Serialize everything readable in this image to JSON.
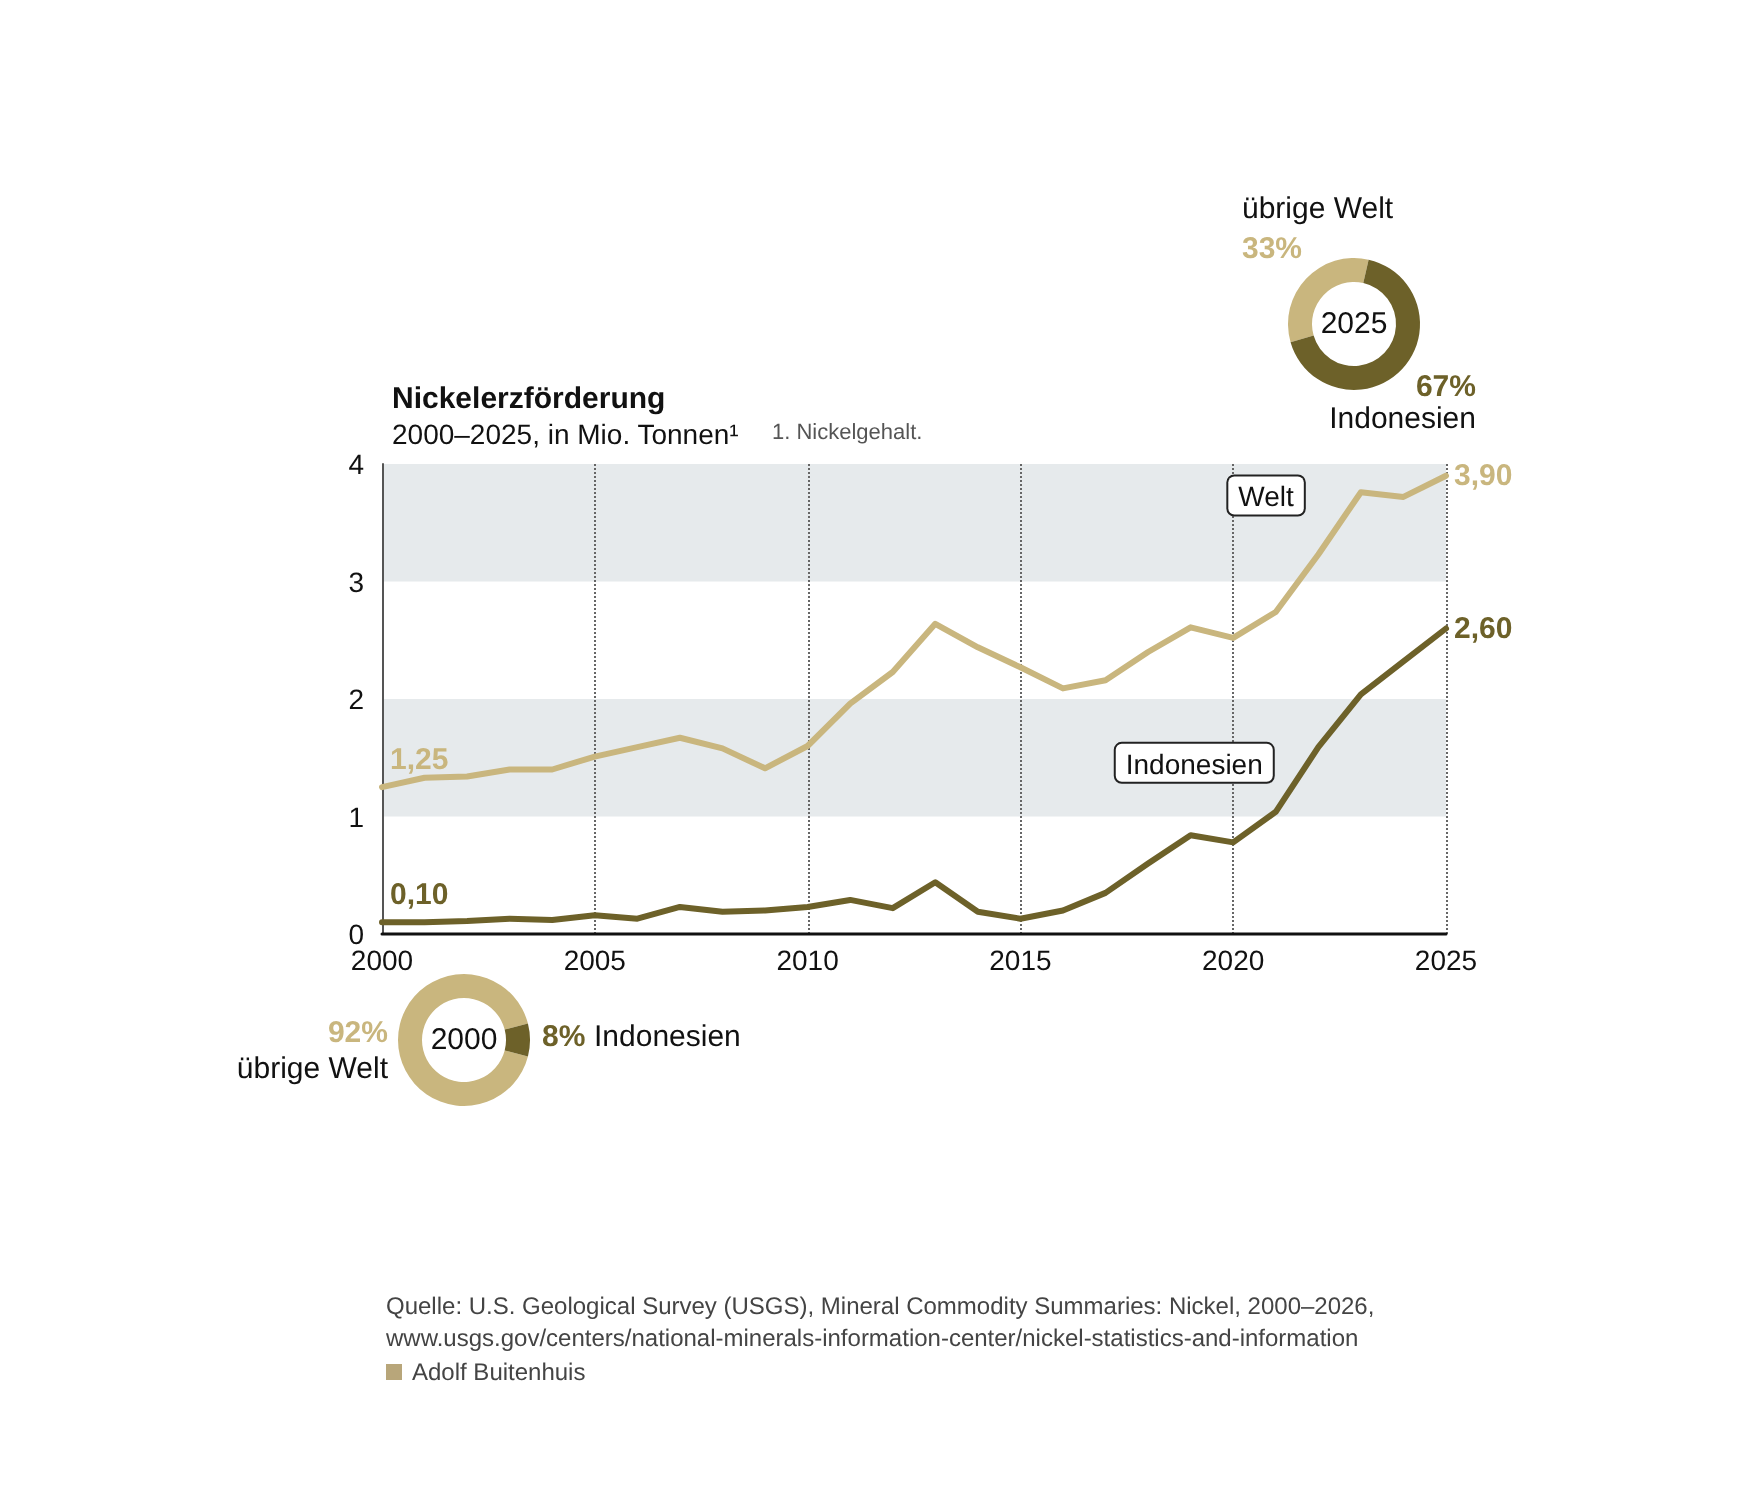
{
  "chart_data": [
    {
      "type": "donut",
      "title": "2025",
      "categories": [
        "übrige Welt",
        "Indonesien"
      ],
      "values": [
        33,
        67
      ],
      "colors": [
        "#c9b67e",
        "#6d6129"
      ],
      "value_labels": [
        "33%",
        "67%"
      ]
    },
    {
      "type": "line",
      "title": "Nickelerzförderung",
      "subtitle": "2000–2025, in Mio. Tonnen¹",
      "annotations": [
        "1. Nickelgehalt.",
        "Quelle: U.S. Geological Survey (USGS), Mineral Commodity Summaries: Nickel, 2000–2026, www.usgs.gov/centers/national-minerals-information-center/nickel-statistics-and-information",
        "Adolf Buitenhuis"
      ],
      "x": [
        2000,
        2001,
        2002,
        2003,
        2004,
        2005,
        2006,
        2007,
        2008,
        2009,
        2010,
        2011,
        2012,
        2013,
        2014,
        2015,
        2016,
        2017,
        2018,
        2019,
        2020,
        2021,
        2022,
        2023,
        2024,
        2025
      ],
      "xlim": [
        2000,
        2025
      ],
      "xticks": [
        2000,
        2005,
        2010,
        2015,
        2020,
        2025
      ],
      "ylim": [
        0,
        4
      ],
      "yticks": [
        0,
        1,
        2,
        3,
        4
      ],
      "grid": "x",
      "marker": "none",
      "line_style": "solid",
      "bands": [
        {
          "axis": "y",
          "from": 1,
          "to": 2,
          "color": "#e6eaec"
        },
        {
          "axis": "y",
          "from": 3,
          "to": 4,
          "color": "#e6eaec"
        }
      ],
      "series": [
        {
          "name": "Welt",
          "color": "#c9b67e",
          "values": [
            1.25,
            1.33,
            1.34,
            1.4,
            1.4,
            1.51,
            1.59,
            1.67,
            1.58,
            1.41,
            1.6,
            1.96,
            2.23,
            2.64,
            2.44,
            2.27,
            2.09,
            2.16,
            2.4,
            2.61,
            2.52,
            2.74,
            3.23,
            3.76,
            3.72,
            3.9
          ],
          "value_labels": [
            "1,25",
            null,
            null,
            null,
            null,
            null,
            null,
            null,
            null,
            null,
            null,
            null,
            null,
            null,
            null,
            null,
            null,
            null,
            null,
            null,
            null,
            null,
            null,
            null,
            null,
            "3,90"
          ]
        },
        {
          "name": "Indonesien",
          "color": "#6d6129",
          "values": [
            0.1,
            0.1,
            0.11,
            0.13,
            0.12,
            0.16,
            0.13,
            0.23,
            0.19,
            0.2,
            0.23,
            0.29,
            0.22,
            0.44,
            0.19,
            0.13,
            0.2,
            0.35,
            0.6,
            0.84,
            0.78,
            1.04,
            1.59,
            2.04,
            2.32,
            2.6
          ],
          "value_labels": [
            "0,10",
            null,
            null,
            null,
            null,
            null,
            null,
            null,
            null,
            null,
            null,
            null,
            null,
            null,
            null,
            null,
            null,
            null,
            null,
            null,
            null,
            null,
            null,
            null,
            null,
            "2,60"
          ]
        }
      ]
    },
    {
      "type": "donut",
      "title": "2000",
      "categories": [
        "übrige Welt",
        "Indonesien"
      ],
      "values": [
        92,
        8
      ],
      "colors": [
        "#c9b67e",
        "#6d6129"
      ],
      "value_labels": [
        "92%",
        "8%"
      ]
    }
  ]
}
